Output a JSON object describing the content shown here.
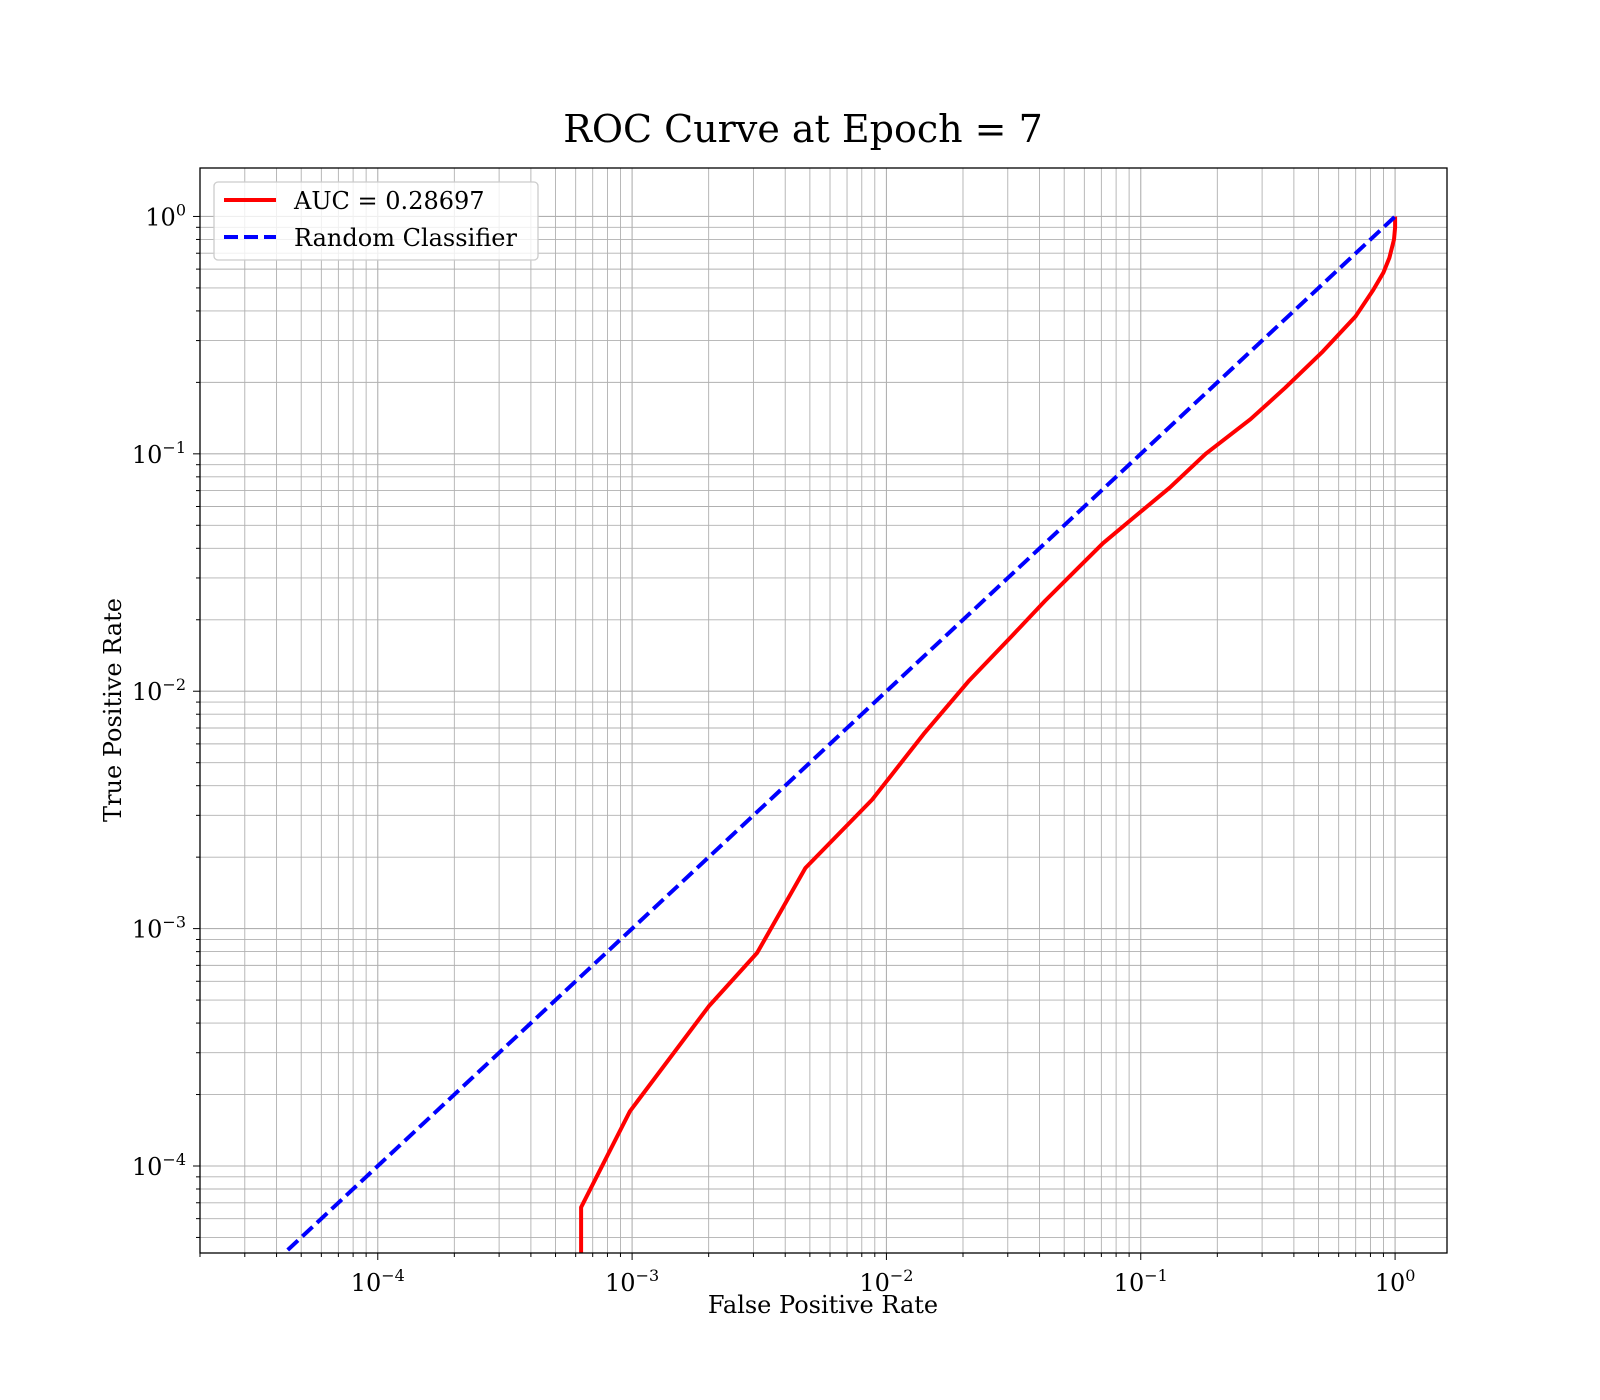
{
  "chart_data": {
    "type": "line",
    "title": "ROC Curve at Epoch = 7",
    "xlabel": "False Positive Rate",
    "ylabel": "True Positive Rate",
    "xscale": "log",
    "yscale": "log",
    "xlim": [
      2e-05,
      1.6
    ],
    "ylim": [
      4.3e-05,
      1.6
    ],
    "grid": true,
    "legend_location": "top-left",
    "x_ticks": [
      {
        "base": "10",
        "exp": "−4",
        "value": 0.0001
      },
      {
        "base": "10",
        "exp": "−3",
        "value": 0.001
      },
      {
        "base": "10",
        "exp": "−2",
        "value": 0.01
      },
      {
        "base": "10",
        "exp": "−1",
        "value": 0.1
      },
      {
        "base": "10",
        "exp": "0",
        "value": 1
      }
    ],
    "y_ticks": [
      {
        "base": "10",
        "exp": "0",
        "value": 1
      },
      {
        "base": "10",
        "exp": "−1",
        "value": 0.1
      },
      {
        "base": "10",
        "exp": "−2",
        "value": 0.01
      },
      {
        "base": "10",
        "exp": "−3",
        "value": 0.001
      },
      {
        "base": "10",
        "exp": "−4",
        "value": 0.0001
      }
    ],
    "series": [
      {
        "name": "AUC = 0.28697",
        "color": "#ff0000",
        "style": "solid",
        "x": [
          0.00063,
          0.00063,
          0.00098,
          0.002,
          0.0031,
          0.0048,
          0.0088,
          0.014,
          0.021,
          0.031,
          0.042,
          0.055,
          0.071,
          0.094,
          0.13,
          0.18,
          0.27,
          0.37,
          0.52,
          0.7,
          0.82,
          0.9,
          0.95,
          0.99,
          1.0,
          1.0
        ],
        "y": [
          4.3e-05,
          6.7e-05,
          0.00017,
          0.00047,
          0.00079,
          0.0018,
          0.0035,
          0.0066,
          0.011,
          0.017,
          0.024,
          0.032,
          0.042,
          0.054,
          0.072,
          0.1,
          0.14,
          0.19,
          0.27,
          0.38,
          0.49,
          0.58,
          0.67,
          0.8,
          0.9,
          1.0
        ]
      },
      {
        "name": "Random Classifier",
        "color": "#0000ff",
        "style": "dashed",
        "x": [
          2e-05,
          1.0
        ],
        "y": [
          2e-05,
          1.0
        ]
      }
    ]
  }
}
